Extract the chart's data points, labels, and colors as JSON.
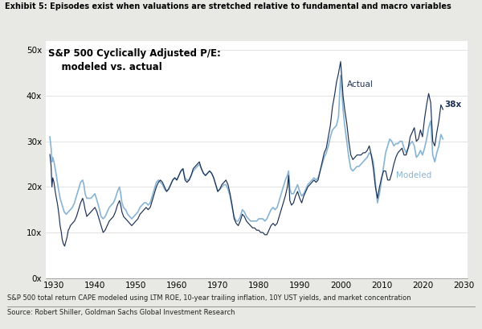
{
  "title": "Exhibit 5: Episodes exist when valuations are stretched relative to fundamental and macro variables",
  "subtitle": "S&P 500 Cyclically Adjusted P/E:\n    modeled vs. actual",
  "footnote1": "S&P 500 total return CAPE modeled using LTM ROE, 10-year trailing inflation, 10Y UST yields, and market concentration",
  "footnote2": "Source: Robert Shiller, Goldman Sachs Global Investment Research",
  "actual_color": "#1c3054",
  "modeled_color": "#88b4d4",
  "background_color": "#e8e8e4",
  "plot_bg_color": "#ffffff",
  "label_actual": "Actual",
  "label_modeled": "Modeled",
  "annotation_38x": "38x",
  "xlim": [
    1928,
    2031
  ],
  "ylim": [
    0,
    52
  ],
  "yticks": [
    0,
    10,
    20,
    30,
    40,
    50
  ],
  "xticks": [
    1930,
    1940,
    1950,
    1960,
    1970,
    1980,
    1990,
    2000,
    2010,
    2020,
    2030
  ],
  "actual_data": [
    [
      1929.0,
      27.1
    ],
    [
      1929.3,
      24.5
    ],
    [
      1929.5,
      20.0
    ],
    [
      1929.7,
      22.0
    ],
    [
      1930.0,
      21.0
    ],
    [
      1930.3,
      19.0
    ],
    [
      1930.6,
      17.5
    ],
    [
      1930.9,
      16.0
    ],
    [
      1931.2,
      14.0
    ],
    [
      1931.5,
      11.5
    ],
    [
      1931.8,
      10.0
    ],
    [
      1932.0,
      8.5
    ],
    [
      1932.3,
      7.5
    ],
    [
      1932.6,
      7.0
    ],
    [
      1932.9,
      8.0
    ],
    [
      1933.2,
      9.0
    ],
    [
      1933.5,
      10.5
    ],
    [
      1933.8,
      11.0
    ],
    [
      1934.0,
      11.5
    ],
    [
      1934.5,
      12.0
    ],
    [
      1935.0,
      12.5
    ],
    [
      1935.5,
      13.5
    ],
    [
      1936.0,
      15.0
    ],
    [
      1936.5,
      16.5
    ],
    [
      1937.0,
      17.5
    ],
    [
      1937.3,
      16.5
    ],
    [
      1937.6,
      15.0
    ],
    [
      1937.9,
      14.0
    ],
    [
      1938.0,
      13.5
    ],
    [
      1938.5,
      14.0
    ],
    [
      1939.0,
      14.5
    ],
    [
      1939.5,
      15.0
    ],
    [
      1940.0,
      15.5
    ],
    [
      1940.5,
      14.5
    ],
    [
      1941.0,
      13.0
    ],
    [
      1941.5,
      11.5
    ],
    [
      1942.0,
      10.0
    ],
    [
      1942.5,
      10.5
    ],
    [
      1943.0,
      11.5
    ],
    [
      1943.5,
      12.5
    ],
    [
      1944.0,
      13.0
    ],
    [
      1944.5,
      13.5
    ],
    [
      1945.0,
      14.5
    ],
    [
      1945.5,
      16.0
    ],
    [
      1946.0,
      17.0
    ],
    [
      1946.3,
      16.0
    ],
    [
      1946.6,
      14.5
    ],
    [
      1947.0,
      13.5
    ],
    [
      1947.5,
      13.0
    ],
    [
      1948.0,
      12.5
    ],
    [
      1948.5,
      12.0
    ],
    [
      1949.0,
      11.5
    ],
    [
      1949.5,
      12.0
    ],
    [
      1950.0,
      12.5
    ],
    [
      1950.5,
      13.0
    ],
    [
      1951.0,
      14.0
    ],
    [
      1951.5,
      14.5
    ],
    [
      1952.0,
      15.0
    ],
    [
      1952.5,
      15.5
    ],
    [
      1953.0,
      15.0
    ],
    [
      1953.5,
      15.5
    ],
    [
      1954.0,
      17.0
    ],
    [
      1954.5,
      18.5
    ],
    [
      1955.0,
      20.0
    ],
    [
      1955.5,
      21.0
    ],
    [
      1956.0,
      21.5
    ],
    [
      1956.5,
      21.0
    ],
    [
      1957.0,
      20.0
    ],
    [
      1957.5,
      19.0
    ],
    [
      1958.0,
      19.5
    ],
    [
      1958.5,
      20.5
    ],
    [
      1959.0,
      21.5
    ],
    [
      1959.5,
      22.0
    ],
    [
      1960.0,
      21.5
    ],
    [
      1960.5,
      22.5
    ],
    [
      1961.0,
      23.5
    ],
    [
      1961.5,
      24.0
    ],
    [
      1962.0,
      21.5
    ],
    [
      1962.5,
      21.0
    ],
    [
      1963.0,
      21.5
    ],
    [
      1963.5,
      22.5
    ],
    [
      1964.0,
      24.0
    ],
    [
      1964.5,
      24.5
    ],
    [
      1965.0,
      25.0
    ],
    [
      1965.5,
      25.5
    ],
    [
      1966.0,
      24.0
    ],
    [
      1966.5,
      23.0
    ],
    [
      1967.0,
      22.5
    ],
    [
      1967.5,
      23.0
    ],
    [
      1968.0,
      23.5
    ],
    [
      1968.5,
      23.0
    ],
    [
      1969.0,
      22.0
    ],
    [
      1969.5,
      20.5
    ],
    [
      1970.0,
      19.0
    ],
    [
      1970.5,
      19.5
    ],
    [
      1971.0,
      20.5
    ],
    [
      1971.5,
      21.0
    ],
    [
      1972.0,
      21.5
    ],
    [
      1972.5,
      20.5
    ],
    [
      1973.0,
      18.5
    ],
    [
      1973.5,
      16.0
    ],
    [
      1974.0,
      13.0
    ],
    [
      1974.5,
      12.0
    ],
    [
      1975.0,
      11.5
    ],
    [
      1975.5,
      12.5
    ],
    [
      1976.0,
      14.0
    ],
    [
      1976.5,
      13.5
    ],
    [
      1977.0,
      12.5
    ],
    [
      1977.5,
      12.0
    ],
    [
      1978.0,
      11.5
    ],
    [
      1978.5,
      11.0
    ],
    [
      1979.0,
      11.0
    ],
    [
      1979.5,
      10.5
    ],
    [
      1980.0,
      10.5
    ],
    [
      1980.5,
      10.0
    ],
    [
      1981.0,
      10.0
    ],
    [
      1981.5,
      9.5
    ],
    [
      1982.0,
      9.5
    ],
    [
      1982.5,
      10.5
    ],
    [
      1983.0,
      11.5
    ],
    [
      1983.5,
      12.0
    ],
    [
      1984.0,
      11.5
    ],
    [
      1984.5,
      12.0
    ],
    [
      1985.0,
      13.5
    ],
    [
      1985.5,
      15.0
    ],
    [
      1986.0,
      16.5
    ],
    [
      1986.5,
      18.0
    ],
    [
      1987.0,
      20.0
    ],
    [
      1987.3,
      22.5
    ],
    [
      1987.6,
      17.0
    ],
    [
      1988.0,
      16.0
    ],
    [
      1988.5,
      16.5
    ],
    [
      1989.0,
      18.0
    ],
    [
      1989.5,
      19.0
    ],
    [
      1990.0,
      17.5
    ],
    [
      1990.5,
      16.5
    ],
    [
      1991.0,
      18.0
    ],
    [
      1991.5,
      19.0
    ],
    [
      1992.0,
      20.0
    ],
    [
      1992.5,
      20.5
    ],
    [
      1993.0,
      21.0
    ],
    [
      1993.5,
      21.5
    ],
    [
      1994.0,
      21.0
    ],
    [
      1994.5,
      21.5
    ],
    [
      1995.0,
      23.5
    ],
    [
      1995.5,
      25.5
    ],
    [
      1996.0,
      27.5
    ],
    [
      1996.5,
      28.5
    ],
    [
      1997.0,
      31.0
    ],
    [
      1997.5,
      33.5
    ],
    [
      1998.0,
      37.5
    ],
    [
      1998.5,
      40.0
    ],
    [
      1999.0,
      43.0
    ],
    [
      1999.5,
      45.0
    ],
    [
      2000.0,
      47.5
    ],
    [
      2000.3,
      44.0
    ],
    [
      2000.6,
      40.0
    ],
    [
      2001.0,
      37.0
    ],
    [
      2001.5,
      34.0
    ],
    [
      2002.0,
      30.0
    ],
    [
      2002.5,
      27.0
    ],
    [
      2003.0,
      26.0
    ],
    [
      2003.5,
      26.5
    ],
    [
      2004.0,
      27.0
    ],
    [
      2004.5,
      27.0
    ],
    [
      2005.0,
      27.0
    ],
    [
      2005.5,
      27.5
    ],
    [
      2006.0,
      27.5
    ],
    [
      2006.5,
      28.0
    ],
    [
      2007.0,
      29.0
    ],
    [
      2007.5,
      27.0
    ],
    [
      2008.0,
      24.0
    ],
    [
      2008.5,
      20.0
    ],
    [
      2009.0,
      17.5
    ],
    [
      2009.5,
      20.0
    ],
    [
      2010.0,
      22.0
    ],
    [
      2010.5,
      23.5
    ],
    [
      2011.0,
      23.5
    ],
    [
      2011.5,
      21.5
    ],
    [
      2012.0,
      21.5
    ],
    [
      2012.5,
      23.0
    ],
    [
      2013.0,
      25.0
    ],
    [
      2013.5,
      26.5
    ],
    [
      2014.0,
      27.5
    ],
    [
      2014.5,
      28.0
    ],
    [
      2015.0,
      28.5
    ],
    [
      2015.5,
      27.0
    ],
    [
      2016.0,
      27.0
    ],
    [
      2016.5,
      28.5
    ],
    [
      2017.0,
      31.0
    ],
    [
      2017.5,
      32.0
    ],
    [
      2018.0,
      33.0
    ],
    [
      2018.5,
      30.0
    ],
    [
      2019.0,
      30.5
    ],
    [
      2019.5,
      32.5
    ],
    [
      2020.0,
      31.0
    ],
    [
      2020.5,
      35.0
    ],
    [
      2021.0,
      38.0
    ],
    [
      2021.5,
      40.5
    ],
    [
      2022.0,
      38.5
    ],
    [
      2022.5,
      30.0
    ],
    [
      2023.0,
      29.0
    ],
    [
      2023.5,
      32.0
    ],
    [
      2024.0,
      34.5
    ],
    [
      2024.5,
      38.0
    ],
    [
      2025.0,
      37.0
    ]
  ],
  "modeled_data": [
    [
      1929.0,
      31.0
    ],
    [
      1929.3,
      28.5
    ],
    [
      1929.5,
      25.5
    ],
    [
      1929.7,
      26.5
    ],
    [
      1930.0,
      25.5
    ],
    [
      1930.5,
      23.0
    ],
    [
      1931.0,
      20.0
    ],
    [
      1931.5,
      17.5
    ],
    [
      1932.0,
      16.0
    ],
    [
      1932.5,
      14.5
    ],
    [
      1933.0,
      14.0
    ],
    [
      1933.5,
      14.5
    ],
    [
      1934.0,
      15.0
    ],
    [
      1934.5,
      15.5
    ],
    [
      1935.0,
      16.5
    ],
    [
      1935.5,
      18.0
    ],
    [
      1936.0,
      19.5
    ],
    [
      1936.5,
      21.0
    ],
    [
      1937.0,
      21.5
    ],
    [
      1937.3,
      20.5
    ],
    [
      1937.6,
      18.5
    ],
    [
      1938.0,
      17.5
    ],
    [
      1938.5,
      17.5
    ],
    [
      1939.0,
      17.5
    ],
    [
      1939.5,
      18.0
    ],
    [
      1940.0,
      18.5
    ],
    [
      1940.5,
      17.0
    ],
    [
      1941.0,
      15.5
    ],
    [
      1941.5,
      13.5
    ],
    [
      1942.0,
      13.0
    ],
    [
      1942.5,
      13.5
    ],
    [
      1943.0,
      14.5
    ],
    [
      1943.5,
      15.5
    ],
    [
      1944.0,
      16.0
    ],
    [
      1944.5,
      16.5
    ],
    [
      1945.0,
      17.5
    ],
    [
      1945.5,
      19.0
    ],
    [
      1946.0,
      20.0
    ],
    [
      1946.3,
      18.5
    ],
    [
      1946.6,
      16.5
    ],
    [
      1947.0,
      15.5
    ],
    [
      1947.5,
      15.0
    ],
    [
      1948.0,
      14.0
    ],
    [
      1948.5,
      13.5
    ],
    [
      1949.0,
      13.0
    ],
    [
      1949.5,
      13.5
    ],
    [
      1950.0,
      14.0
    ],
    [
      1950.5,
      14.5
    ],
    [
      1951.0,
      15.5
    ],
    [
      1951.5,
      16.0
    ],
    [
      1952.0,
      16.5
    ],
    [
      1952.5,
      16.5
    ],
    [
      1953.0,
      16.0
    ],
    [
      1953.5,
      16.5
    ],
    [
      1954.0,
      18.0
    ],
    [
      1954.5,
      19.5
    ],
    [
      1955.0,
      21.0
    ],
    [
      1955.5,
      21.5
    ],
    [
      1956.0,
      21.0
    ],
    [
      1956.5,
      20.5
    ],
    [
      1957.0,
      19.5
    ],
    [
      1957.5,
      19.0
    ],
    [
      1958.0,
      19.5
    ],
    [
      1958.5,
      20.5
    ],
    [
      1959.0,
      21.5
    ],
    [
      1959.5,
      22.0
    ],
    [
      1960.0,
      21.5
    ],
    [
      1960.5,
      22.5
    ],
    [
      1961.0,
      23.5
    ],
    [
      1961.5,
      24.0
    ],
    [
      1962.0,
      22.0
    ],
    [
      1962.5,
      21.5
    ],
    [
      1963.0,
      21.5
    ],
    [
      1963.5,
      22.5
    ],
    [
      1964.0,
      23.5
    ],
    [
      1964.5,
      24.0
    ],
    [
      1965.0,
      24.5
    ],
    [
      1965.5,
      25.0
    ],
    [
      1966.0,
      24.0
    ],
    [
      1966.5,
      23.0
    ],
    [
      1967.0,
      22.5
    ],
    [
      1967.5,
      23.0
    ],
    [
      1968.0,
      23.5
    ],
    [
      1968.5,
      23.0
    ],
    [
      1969.0,
      22.0
    ],
    [
      1969.5,
      20.5
    ],
    [
      1970.0,
      19.0
    ],
    [
      1970.5,
      19.5
    ],
    [
      1971.0,
      20.0
    ],
    [
      1971.5,
      20.5
    ],
    [
      1972.0,
      20.5
    ],
    [
      1972.5,
      19.5
    ],
    [
      1973.0,
      18.0
    ],
    [
      1973.5,
      15.5
    ],
    [
      1974.0,
      13.5
    ],
    [
      1974.5,
      12.5
    ],
    [
      1975.0,
      12.5
    ],
    [
      1975.5,
      13.5
    ],
    [
      1976.0,
      15.0
    ],
    [
      1976.5,
      14.5
    ],
    [
      1977.0,
      13.5
    ],
    [
      1977.5,
      13.0
    ],
    [
      1978.0,
      12.5
    ],
    [
      1978.5,
      12.5
    ],
    [
      1979.0,
      12.5
    ],
    [
      1979.5,
      12.5
    ],
    [
      1980.0,
      13.0
    ],
    [
      1980.5,
      13.0
    ],
    [
      1981.0,
      13.0
    ],
    [
      1981.5,
      12.5
    ],
    [
      1982.0,
      13.0
    ],
    [
      1982.5,
      14.0
    ],
    [
      1983.0,
      15.0
    ],
    [
      1983.5,
      15.5
    ],
    [
      1984.0,
      15.0
    ],
    [
      1984.5,
      15.5
    ],
    [
      1985.0,
      17.0
    ],
    [
      1985.5,
      18.5
    ],
    [
      1986.0,
      20.0
    ],
    [
      1986.5,
      21.5
    ],
    [
      1987.0,
      22.5
    ],
    [
      1987.3,
      23.5
    ],
    [
      1987.6,
      19.5
    ],
    [
      1988.0,
      18.5
    ],
    [
      1988.5,
      18.5
    ],
    [
      1989.0,
      19.5
    ],
    [
      1989.5,
      20.5
    ],
    [
      1990.0,
      19.0
    ],
    [
      1990.5,
      18.0
    ],
    [
      1991.0,
      18.5
    ],
    [
      1991.5,
      19.5
    ],
    [
      1992.0,
      20.5
    ],
    [
      1992.5,
      21.0
    ],
    [
      1993.0,
      21.5
    ],
    [
      1993.5,
      22.0
    ],
    [
      1994.0,
      21.5
    ],
    [
      1994.5,
      22.0
    ],
    [
      1995.0,
      23.5
    ],
    [
      1995.5,
      25.0
    ],
    [
      1996.0,
      26.5
    ],
    [
      1996.5,
      27.5
    ],
    [
      1997.0,
      29.0
    ],
    [
      1997.5,
      31.0
    ],
    [
      1998.0,
      32.5
    ],
    [
      1998.5,
      33.0
    ],
    [
      1999.0,
      33.5
    ],
    [
      1999.5,
      35.5
    ],
    [
      2000.0,
      44.5
    ],
    [
      2000.3,
      41.0
    ],
    [
      2000.6,
      37.0
    ],
    [
      2001.0,
      33.5
    ],
    [
      2001.5,
      30.0
    ],
    [
      2002.0,
      26.5
    ],
    [
      2002.5,
      24.0
    ],
    [
      2003.0,
      23.5
    ],
    [
      2003.5,
      24.0
    ],
    [
      2004.0,
      24.5
    ],
    [
      2004.5,
      24.5
    ],
    [
      2005.0,
      25.0
    ],
    [
      2005.5,
      25.5
    ],
    [
      2006.0,
      26.0
    ],
    [
      2006.5,
      26.5
    ],
    [
      2007.0,
      27.5
    ],
    [
      2007.5,
      27.0
    ],
    [
      2008.0,
      25.5
    ],
    [
      2008.5,
      21.0
    ],
    [
      2009.0,
      16.5
    ],
    [
      2009.5,
      18.5
    ],
    [
      2010.0,
      21.5
    ],
    [
      2010.5,
      24.5
    ],
    [
      2011.0,
      27.5
    ],
    [
      2011.5,
      29.0
    ],
    [
      2012.0,
      30.5
    ],
    [
      2012.5,
      30.0
    ],
    [
      2013.0,
      29.0
    ],
    [
      2013.5,
      29.5
    ],
    [
      2014.0,
      29.5
    ],
    [
      2014.5,
      30.0
    ],
    [
      2015.0,
      30.0
    ],
    [
      2015.5,
      28.5
    ],
    [
      2016.0,
      27.5
    ],
    [
      2016.5,
      28.5
    ],
    [
      2017.0,
      29.5
    ],
    [
      2017.5,
      30.0
    ],
    [
      2018.0,
      29.0
    ],
    [
      2018.5,
      26.5
    ],
    [
      2019.0,
      27.0
    ],
    [
      2019.5,
      28.0
    ],
    [
      2020.0,
      27.0
    ],
    [
      2020.5,
      28.5
    ],
    [
      2021.0,
      30.5
    ],
    [
      2021.5,
      33.0
    ],
    [
      2022.0,
      34.5
    ],
    [
      2022.5,
      27.0
    ],
    [
      2023.0,
      25.5
    ],
    [
      2023.5,
      27.5
    ],
    [
      2024.0,
      29.0
    ],
    [
      2024.5,
      31.5
    ],
    [
      2025.0,
      30.5
    ]
  ]
}
